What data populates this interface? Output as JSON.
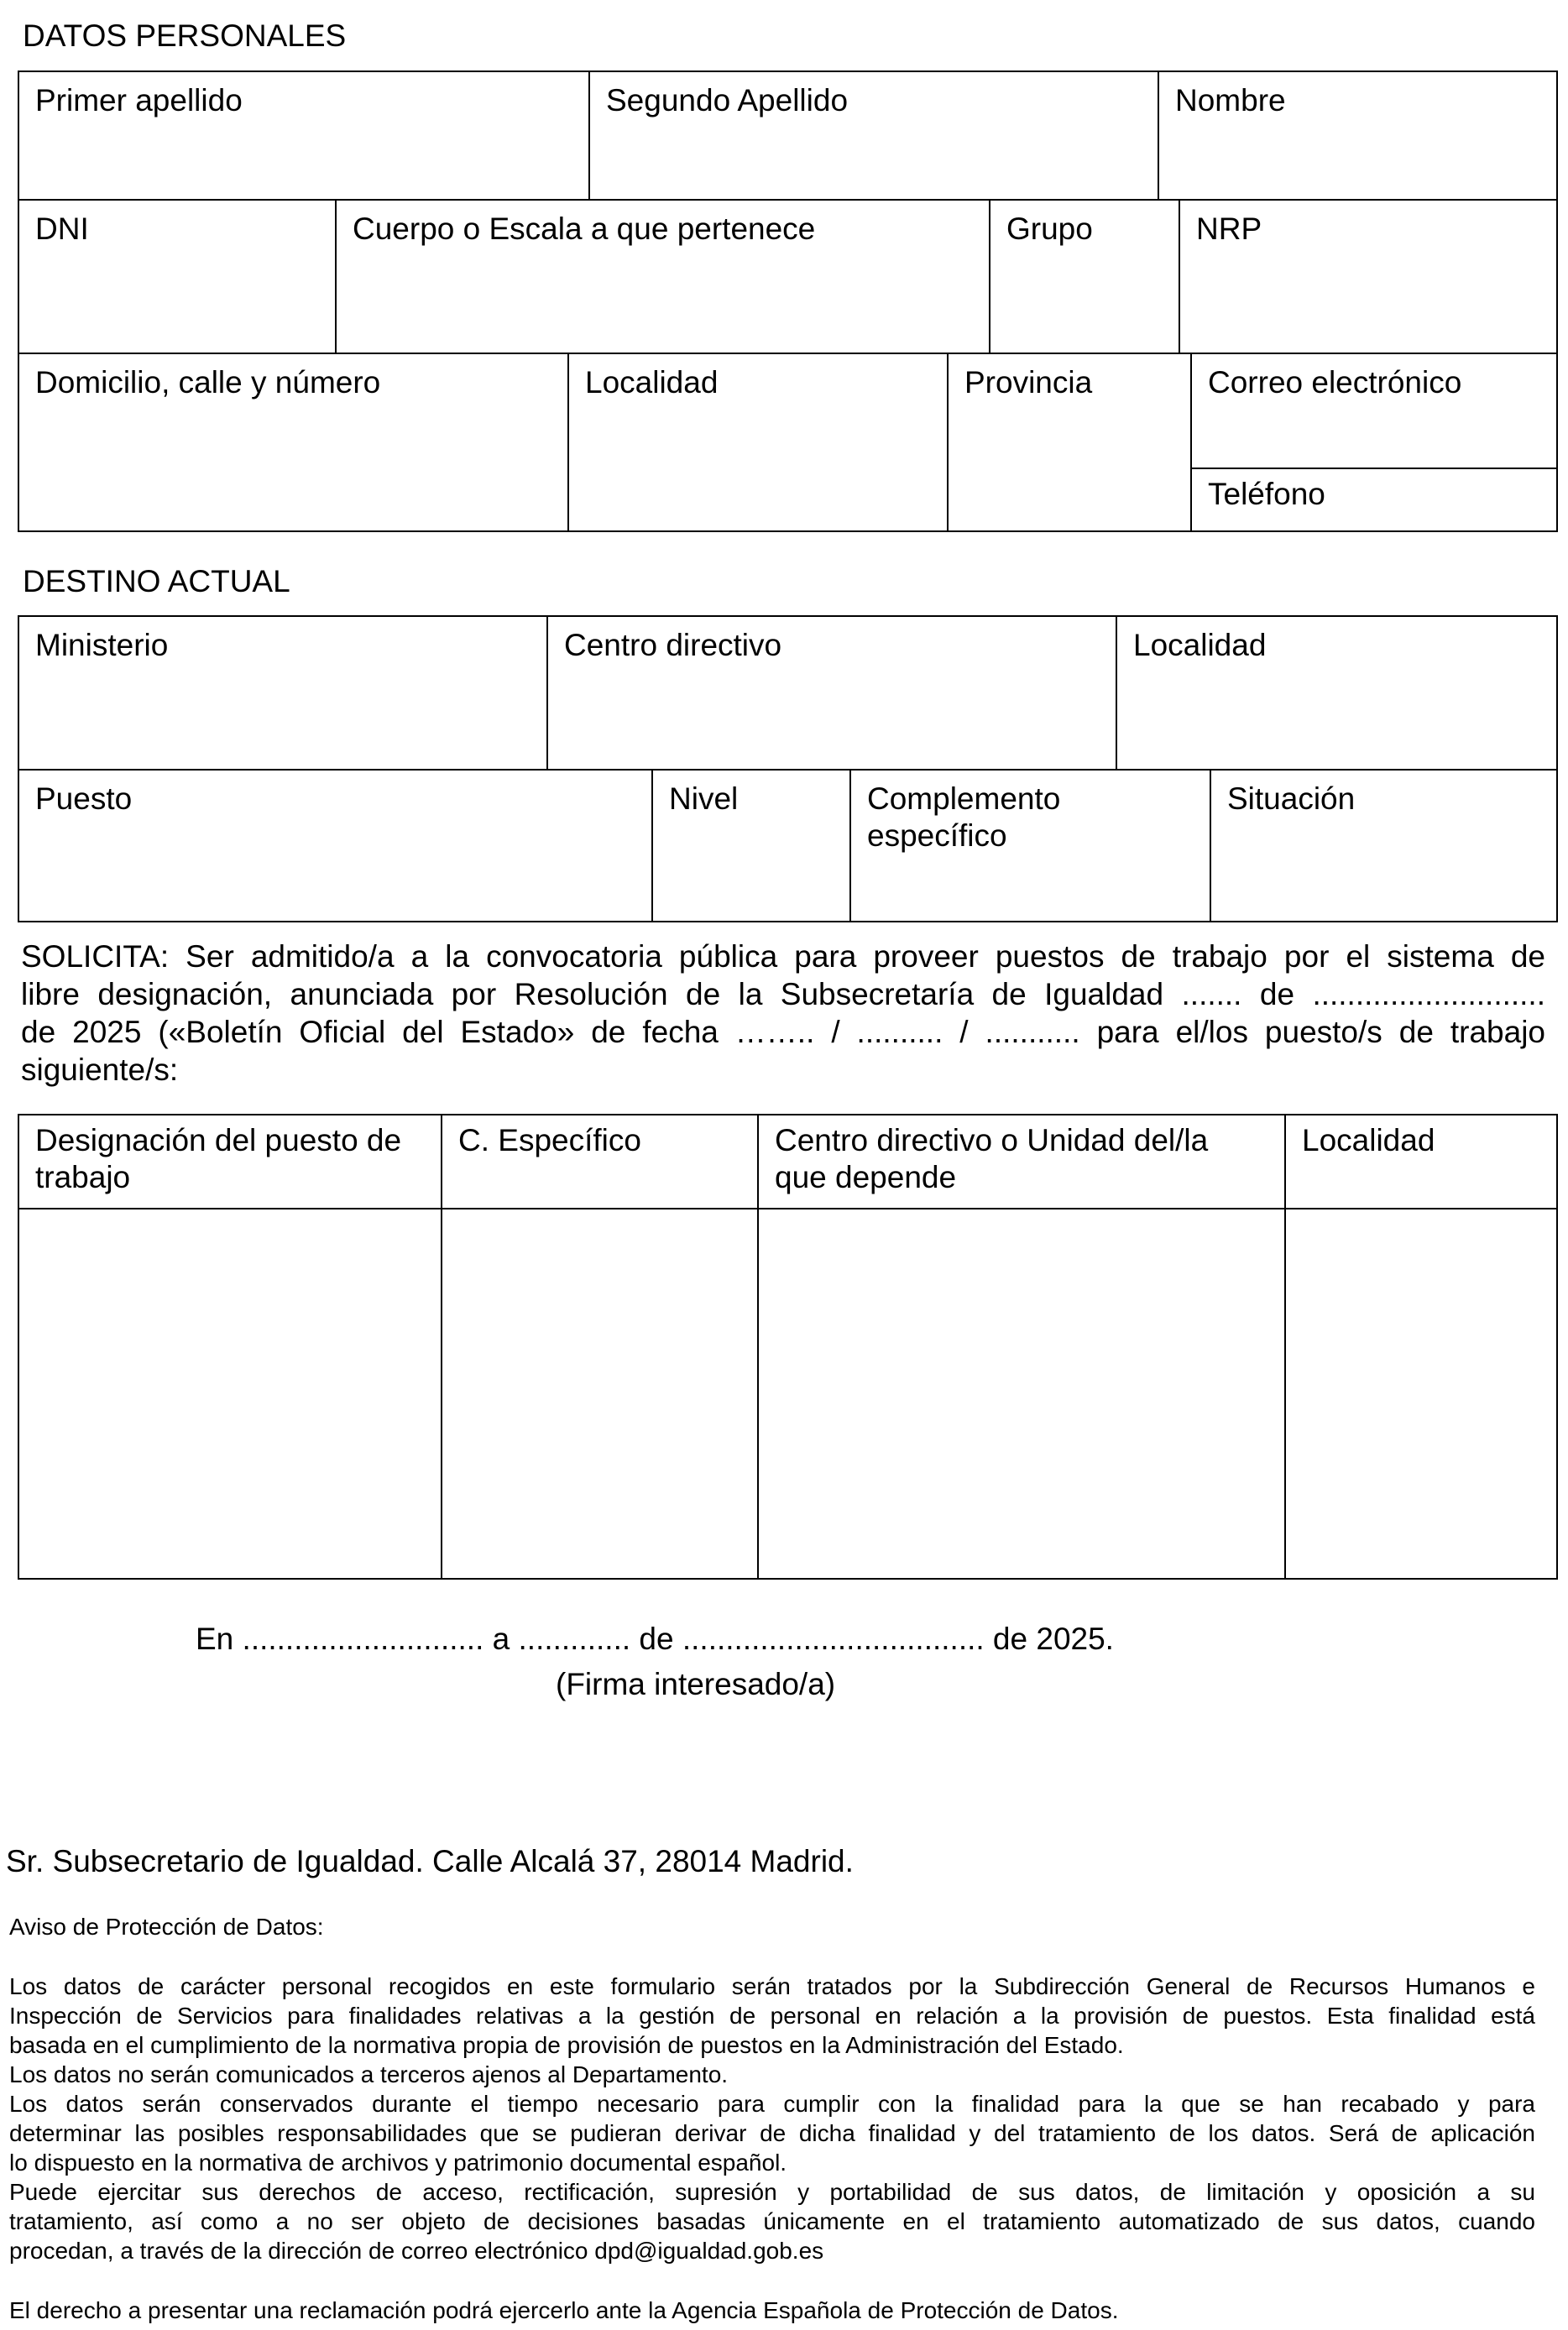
{
  "datos_personales": {
    "heading": "DATOS PERSONALES",
    "fields": [
      "Primer apellido",
      "Segundo Apellido",
      "Nombre",
      "DNI",
      "Cuerpo o Escala a que pertenece",
      "Grupo",
      "NRP",
      "Domicilio, calle y número",
      "Localidad",
      "Provincia",
      "Correo electrónico",
      "Teléfono"
    ]
  },
  "destino_actual": {
    "heading": "DESTINO ACTUAL",
    "fields": [
      "Ministerio",
      "Centro directivo",
      "Localidad",
      "Puesto",
      "Nivel",
      "Complemento específico",
      "Situación"
    ]
  },
  "solicita": {
    "lines": [
      "SOLICITA: Ser admitido/a a la convocatoria pública para proveer puestos de trabajo por el sistema de",
      "libre designación, anunciada por Resolución de la Subsecretaría de Igualdad ....... de ...........................",
      "de 2025 («Boletín Oficial del Estado» de fecha …….. / .......... / ........... para el/los puesto/s de trabajo",
      "siguiente/s:"
    ]
  },
  "puestos_table": {
    "headers": [
      "Designación del puesto de trabajo",
      "C. Específico",
      "Centro directivo o Unidad del/la que depende",
      "Localidad"
    ]
  },
  "firma": {
    "date_line": "En ............................ a ............. de ................................... de 2025.",
    "signature_label": "(Firma interesado/a)"
  },
  "destinatario": "Sr. Subsecretario de Igualdad. Calle Alcalá 37, 28014 Madrid.",
  "aviso": {
    "title": "Aviso de Protección de Datos:",
    "lines": [
      "Los datos de carácter personal recogidos en este formulario serán tratados por la Subdirección General de Recursos Humanos e",
      "Inspección de Servicios para finalidades relativas a la gestión de personal en relación a la provisión de puestos. Esta finalidad está",
      "basada en el cumplimiento de la normativa propia de provisión de puestos en la Administración del Estado.",
      "Los datos no serán comunicados a terceros ajenos al Departamento.",
      "Los datos serán conservados durante el tiempo necesario para cumplir con la finalidad para la que se han recabado y para",
      "determinar las posibles responsabilidades que se pudieran derivar de dicha finalidad y del tratamiento de los datos. Será de aplicación",
      "lo dispuesto en la normativa de archivos y patrimonio documental español.",
      "Puede ejercitar sus derechos de acceso, rectificación, supresión y portabilidad de sus datos, de limitación y oposición a su",
      "tratamiento, así como a no ser objeto de decisiones basadas únicamente en el tratamiento automatizado de sus datos, cuando",
      "procedan, a través de la dirección de correo electrónico dpd@igualdad.gob.es"
    ],
    "final": "El derecho a presentar una reclamación podrá ejercerlo ante la Agencia Española de Protección de Datos."
  }
}
